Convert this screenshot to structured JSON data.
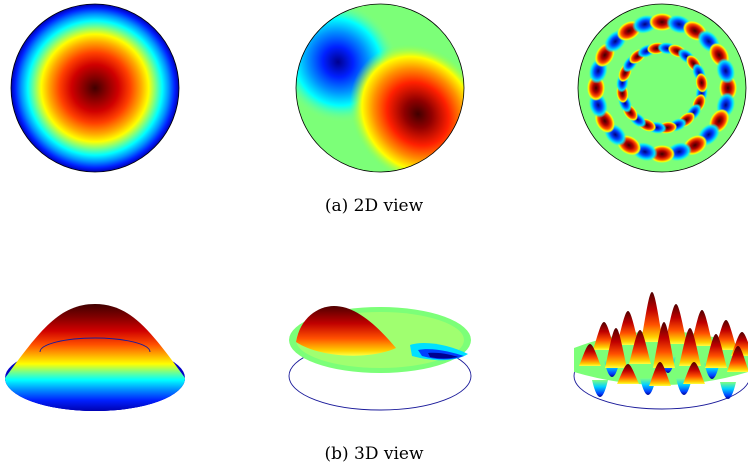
{
  "captions": {
    "a": "(a) 2D view",
    "b": "(b) 3D view"
  },
  "colors": {
    "colormap": [
      "#00008f",
      "#0000ff",
      "#0080ff",
      "#00ffff",
      "#80ff80",
      "#ffff00",
      "#ff8000",
      "#ff0000",
      "#800000",
      "#400000"
    ],
    "ring_outline": "#1a1a9a",
    "disk_outline": "#000000"
  },
  "panels": [
    {
      "id": "radial-mode",
      "view": "2D"
    },
    {
      "id": "dipole-mode",
      "view": "2D"
    },
    {
      "id": "high-order-mode",
      "view": "2D"
    },
    {
      "id": "radial-mode",
      "view": "3D"
    },
    {
      "id": "dipole-mode",
      "view": "3D"
    },
    {
      "id": "high-order-mode",
      "view": "3D"
    }
  ]
}
